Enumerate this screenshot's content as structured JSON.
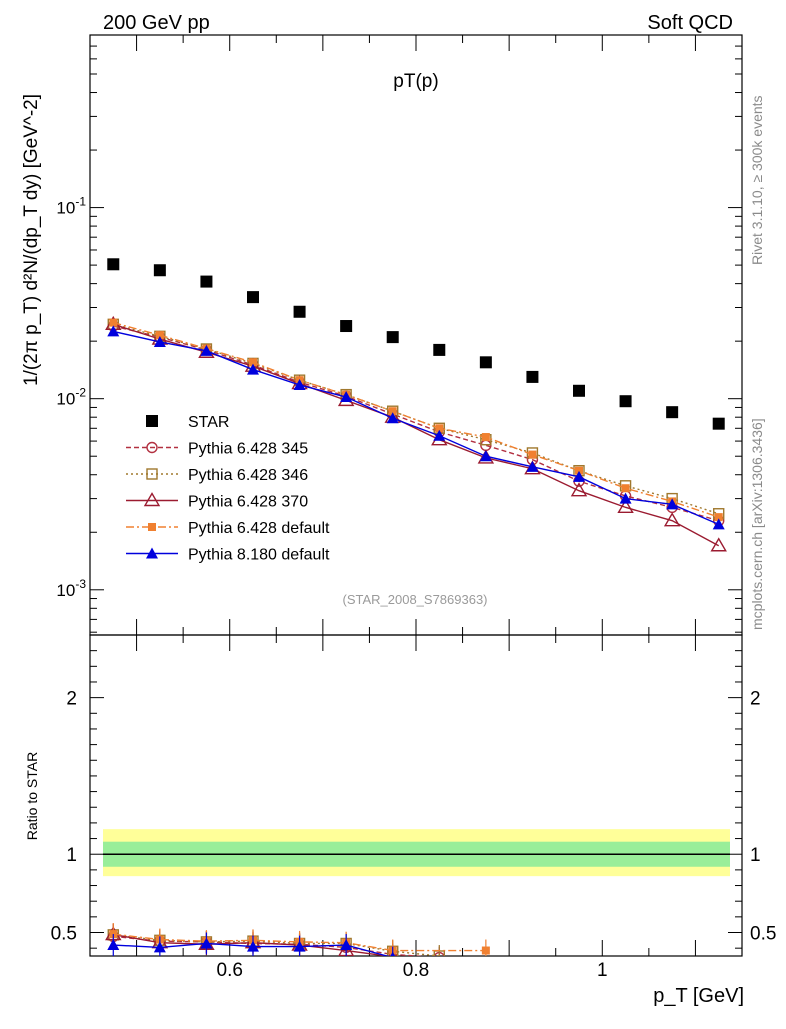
{
  "header": {
    "left": "200 GeV pp",
    "right": "Soft QCD"
  },
  "side_labels": {
    "rivet": "Rivet 3.1.10, ≥ 300k events",
    "mcplots": "mcplots.cern.ch [arXiv:1306.3436]"
  },
  "chart_data": [
    {
      "type": "scatter",
      "panel": "main",
      "title": "pT(p)",
      "analysis_label": "(STAR_2008_S7869363)",
      "xlabel": "p_T [GeV]",
      "ylabel": "1/(2π p_T) d²N/(dp_T dy) [GeV^-2]",
      "yscale": "log",
      "xlim": [
        0.45,
        1.15
      ],
      "ylim": [
        0.00058,
        0.8
      ],
      "y_tick_labels": [
        "10^-3",
        "10^-2",
        "10^-1"
      ],
      "x": [
        0.475,
        0.525,
        0.575,
        0.625,
        0.675,
        0.725,
        0.775,
        0.825,
        0.875,
        0.925,
        0.975,
        1.025,
        1.075,
        1.125
      ],
      "series": [
        {
          "name": "STAR",
          "color": "#000000",
          "marker": "square-filled",
          "values": [
            0.0505,
            0.047,
            0.041,
            0.034,
            0.0285,
            0.024,
            0.021,
            0.018,
            0.0155,
            0.013,
            0.011,
            0.0097,
            0.0085,
            0.0074
          ]
        },
        {
          "name": "Pythia 6.428 345",
          "color": "#b23040",
          "marker": "circle-open",
          "line": "dashed",
          "values": [
            0.024,
            0.021,
            0.018,
            0.015,
            0.0122,
            0.0103,
            0.0083,
            0.0067,
            0.0057,
            0.0048,
            0.0037,
            0.0031,
            0.0027,
            0.0023
          ]
        },
        {
          "name": "Pythia 6.428 346",
          "color": "#a0782d",
          "marker": "square-open",
          "line": "dotted",
          "values": [
            0.0245,
            0.0212,
            0.0182,
            0.0153,
            0.0125,
            0.0105,
            0.0086,
            0.007,
            0.0061,
            0.0052,
            0.0042,
            0.0035,
            0.003,
            0.0025
          ]
        },
        {
          "name": "Pythia 6.428 370",
          "color": "#9b1b30",
          "marker": "triangle-open",
          "line": "solid",
          "values": [
            0.0245,
            0.0205,
            0.0175,
            0.0148,
            0.012,
            0.0098,
            0.008,
            0.0061,
            0.0049,
            0.0043,
            0.0033,
            0.0027,
            0.0023,
            0.0017
          ]
        },
        {
          "name": "Pythia 6.428 default",
          "color": "#f08030",
          "marker": "square-filled-small",
          "line": "dashdot",
          "values": [
            0.025,
            0.0215,
            0.0183,
            0.0155,
            0.0125,
            0.0105,
            0.0086,
            0.007,
            0.0063,
            0.0051,
            0.0042,
            0.0034,
            0.0029,
            0.0024
          ]
        },
        {
          "name": "Pythia 8.180 default",
          "color": "#0000dd",
          "marker": "triangle-filled",
          "line": "solid",
          "values": [
            0.0225,
            0.0198,
            0.0178,
            0.0142,
            0.0118,
            0.0102,
            0.0079,
            0.0064,
            0.005,
            0.0044,
            0.0039,
            0.003,
            0.0028,
            0.0022
          ]
        }
      ]
    },
    {
      "type": "line",
      "panel": "ratio",
      "ylabel": "Ratio to STAR",
      "xlabel": "p_T [GeV]",
      "xlim": [
        0.45,
        1.15
      ],
      "ylim": [
        0.35,
        2.4
      ],
      "y_tick_labels": [
        "0.5",
        "1",
        "2"
      ],
      "x_tick_labels": [
        "0.6",
        "0.8",
        "1"
      ],
      "x_ticks": [
        0.6,
        0.8,
        1.0
      ],
      "x": [
        0.475,
        0.525,
        0.575,
        0.625,
        0.675,
        0.725,
        0.775,
        0.825,
        0.875
      ],
      "band_inner": [
        0.92,
        1.08
      ],
      "band_outer": [
        0.86,
        1.16
      ],
      "series": [
        {
          "name": "Pythia 6.428 345",
          "values": [
            0.475,
            0.445,
            0.44,
            0.43,
            0.425,
            0.405,
            0.36,
            0.34,
            null
          ]
        },
        {
          "name": "Pythia 6.428 346",
          "values": [
            0.485,
            0.45,
            0.44,
            0.445,
            0.43,
            0.43,
            0.38,
            0.35,
            null
          ]
        },
        {
          "name": "Pythia 6.428 370",
          "values": [
            0.487,
            0.435,
            0.425,
            0.435,
            0.42,
            0.385,
            0.345,
            null,
            null
          ]
        },
        {
          "name": "Pythia 6.428 default",
          "values": [
            0.49,
            0.455,
            0.445,
            0.45,
            0.44,
            0.435,
            0.385,
            null,
            0.385
          ]
        },
        {
          "name": "Pythia 8.180 default",
          "values": [
            0.42,
            0.405,
            0.43,
            0.41,
            0.41,
            0.42,
            0.34,
            null,
            null
          ]
        }
      ]
    }
  ]
}
